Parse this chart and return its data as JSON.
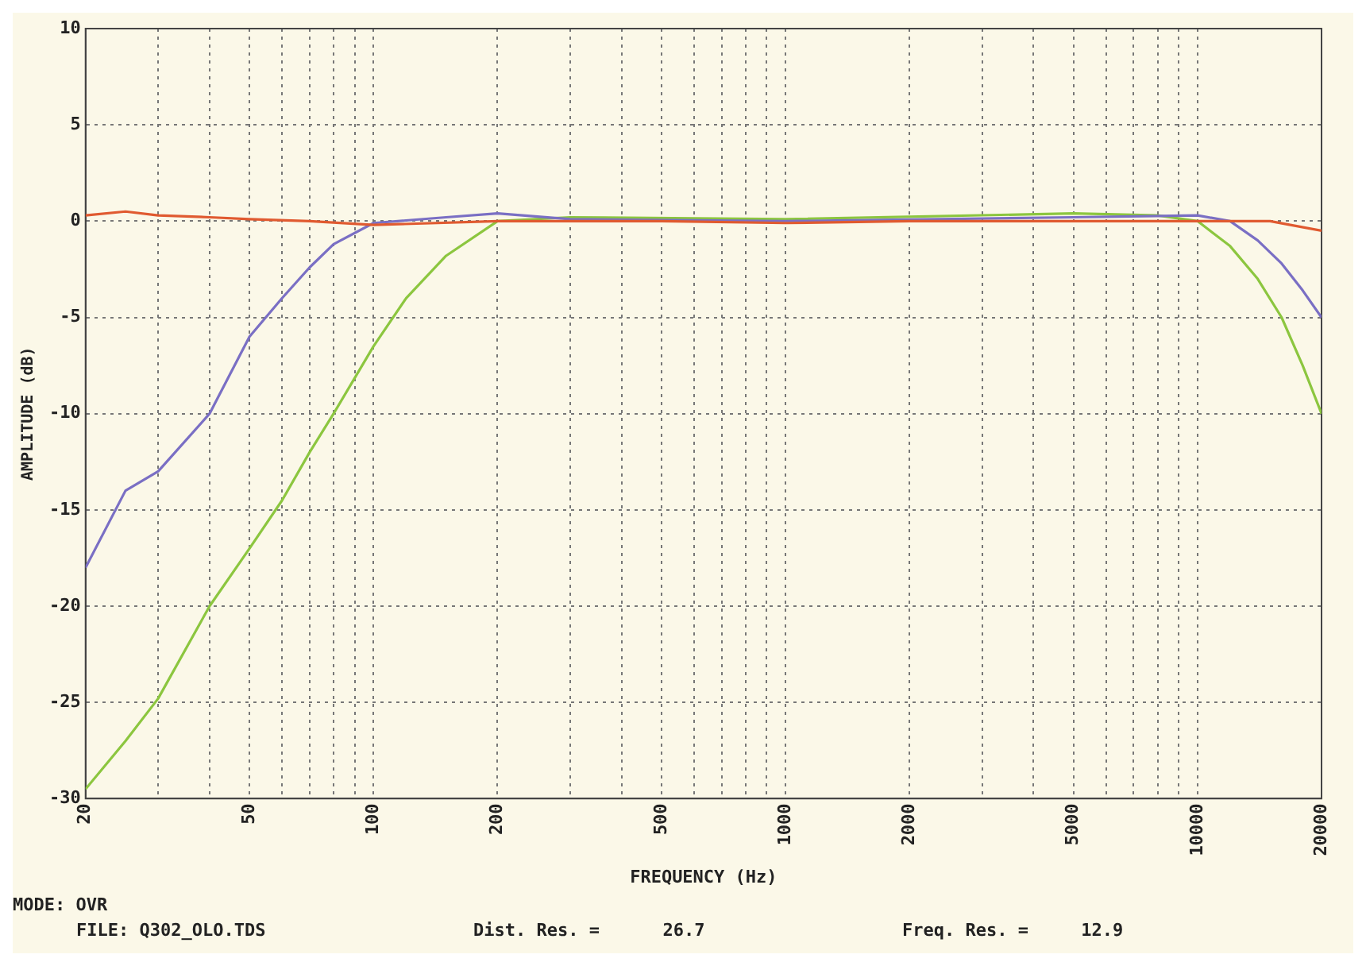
{
  "chart_data": {
    "type": "line",
    "xlabel": "FREQUENCY (Hz)",
    "ylabel": "AMPLITUDE (dB)",
    "annotations": [
      "MODE: OVR",
      "FILE: Q302_OLO.TDS",
      "Dist. Res. =      26.7",
      "Freq. Res. =     12.9"
    ],
    "log": "x",
    "grid": true,
    "legend": false,
    "marker": "none",
    "line_style": "solid",
    "xlim": [
      20,
      20000
    ],
    "ylim": [
      -30,
      10
    ],
    "xticks": [
      20,
      {
        "value": 30,
        "label": null
      },
      {
        "value": 40,
        "label": null
      },
      50,
      {
        "value": 60,
        "label": null
      },
      {
        "value": 70,
        "label": null
      },
      {
        "value": 80,
        "label": null
      },
      {
        "value": 90,
        "label": null
      },
      100,
      200,
      {
        "value": 300,
        "label": null
      },
      {
        "value": 400,
        "label": null
      },
      500,
      {
        "value": 600,
        "label": null
      },
      {
        "value": 700,
        "label": null
      },
      {
        "value": 800,
        "label": null
      },
      {
        "value": 900,
        "label": null
      },
      1000,
      2000,
      {
        "value": 3000,
        "label": null
      },
      {
        "value": 4000,
        "label": null
      },
      5000,
      {
        "value": 6000,
        "label": null
      },
      {
        "value": 7000,
        "label": null
      },
      {
        "value": 8000,
        "label": null
      },
      {
        "value": 9000,
        "label": null
      },
      10000,
      20000
    ],
    "yticks": [
      -30,
      -25,
      -20,
      -15,
      -10,
      -5,
      0,
      5,
      10
    ],
    "series": [
      {
        "color": "#e05a30",
        "x": [
          20,
          25,
          30,
          40,
          50,
          70,
          100,
          200,
          500,
          1000,
          2000,
          5000,
          10000,
          15000,
          20000
        ],
        "values": [
          0.3,
          0.5,
          0.3,
          0.2,
          0.1,
          0,
          -0.2,
          0,
          0,
          -0.1,
          0,
          0,
          0,
          0,
          -0.5
        ]
      },
      {
        "color": "#7a6fc4",
        "x": [
          20,
          25,
          30,
          40,
          50,
          60,
          70,
          80,
          100,
          150,
          200,
          300,
          1000,
          5000,
          10000,
          12000,
          14000,
          16000,
          18000,
          20000
        ],
        "values": [
          -18,
          -14,
          -13,
          -10,
          -6,
          -4,
          -2.4,
          -1.2,
          -0.1,
          0.2,
          0.4,
          0.1,
          0,
          0.2,
          0.3,
          0,
          -1,
          -2.2,
          -3.6,
          -5
        ]
      },
      {
        "color": "#8cc63f",
        "x": [
          20,
          25,
          30,
          40,
          50,
          60,
          70,
          80,
          100,
          120,
          150,
          200,
          300,
          1000,
          5000,
          8000,
          10000,
          12000,
          14000,
          16000,
          18000,
          20000
        ],
        "values": [
          -29.5,
          -27,
          -24.8,
          -20,
          -17,
          -14.5,
          -12,
          -10,
          -6.5,
          -4,
          -1.8,
          0,
          0.2,
          0.1,
          0.4,
          0.3,
          0,
          -1.3,
          -3,
          -5,
          -7.5,
          -10
        ]
      }
    ]
  }
}
